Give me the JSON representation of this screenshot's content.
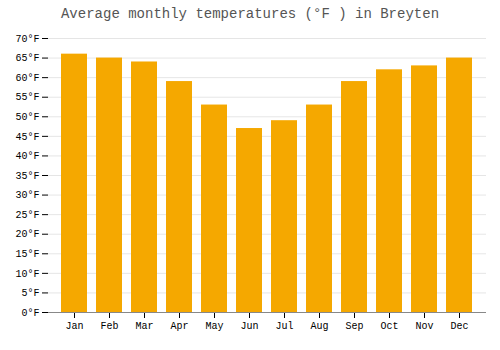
{
  "chart_data": {
    "type": "bar",
    "title": "Average monthly temperatures (°F ) in Breyten",
    "categories": [
      "Jan",
      "Feb",
      "Mar",
      "Apr",
      "May",
      "Jun",
      "Jul",
      "Aug",
      "Sep",
      "Oct",
      "Nov",
      "Dec"
    ],
    "values": [
      66,
      65,
      64,
      59,
      53,
      47,
      49,
      53,
      59,
      62,
      63,
      65
    ],
    "color": "#F5A800",
    "ylim": [
      0,
      70
    ],
    "yticks": [
      {
        "value": 0,
        "label": "0°F"
      },
      {
        "value": 5,
        "label": "5°F"
      },
      {
        "value": 10,
        "label": "10°F"
      },
      {
        "value": 15,
        "label": "15°F"
      },
      {
        "value": 20,
        "label": "20°F"
      },
      {
        "value": 25,
        "label": "25°F"
      },
      {
        "value": 30,
        "label": "30°F"
      },
      {
        "value": 35,
        "label": "35°F"
      },
      {
        "value": 40,
        "label": "40°F"
      },
      {
        "value": 45,
        "label": "45°F"
      },
      {
        "value": 50,
        "label": "50°F"
      },
      {
        "value": 55,
        "label": "55°F"
      },
      {
        "value": 60,
        "label": "60°F"
      },
      {
        "value": 65,
        "label": "65°F"
      },
      {
        "value": 70,
        "label": "70°F"
      }
    ],
    "grid": true
  }
}
